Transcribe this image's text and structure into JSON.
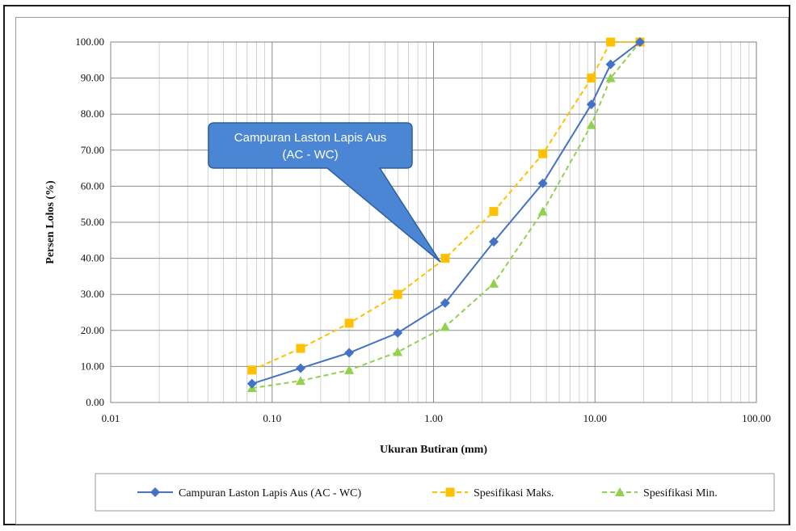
{
  "chart_data": {
    "type": "line",
    "xscale": "log",
    "xlim": [
      0.01,
      100
    ],
    "ylim": [
      0,
      100
    ],
    "xticks": [
      "0.01",
      "0.10",
      "1.00",
      "10.00",
      "100.00"
    ],
    "yticks": [
      "0.00",
      "10.00",
      "20.00",
      "30.00",
      "40.00",
      "50.00",
      "60.00",
      "70.00",
      "80.00",
      "90.00",
      "100.00"
    ],
    "xlabel": "Ukuran Butiran (mm)",
    "ylabel": "Persen Lolos (%)",
    "grid": true,
    "legend_position": "bottom",
    "annotation": [
      "Campuran Laston Lapis Aus",
      "(AC - WC)"
    ],
    "series": [
      {
        "name": "Campuran Laston Lapis Aus (AC - WC)",
        "color": "#4472c4",
        "marker": "diamond",
        "dash": "solid",
        "x": [
          0.075,
          0.15,
          0.3,
          0.6,
          1.18,
          2.36,
          4.75,
          9.5,
          12.5,
          19
        ],
        "y": [
          5.2,
          9.5,
          13.8,
          19.3,
          27.6,
          44.6,
          60.8,
          82.7,
          93.8,
          100
        ]
      },
      {
        "name": "Spesifikasi Maks.",
        "color": "#ffc000",
        "marker": "square",
        "dash": "dashed",
        "x": [
          0.075,
          0.15,
          0.3,
          0.6,
          1.18,
          2.36,
          4.75,
          9.5,
          12.5,
          19
        ],
        "y": [
          9,
          15,
          22,
          30,
          40,
          53,
          69,
          90,
          100,
          100
        ]
      },
      {
        "name": "Spesifikasi Min.",
        "color": "#92d050",
        "marker": "triangle",
        "dash": "dashed",
        "x": [
          0.075,
          0.15,
          0.3,
          0.6,
          1.18,
          2.36,
          4.75,
          9.5,
          12.5,
          19
        ],
        "y": [
          4,
          6,
          9,
          14,
          21,
          33,
          53,
          77,
          90,
          100
        ]
      }
    ]
  }
}
